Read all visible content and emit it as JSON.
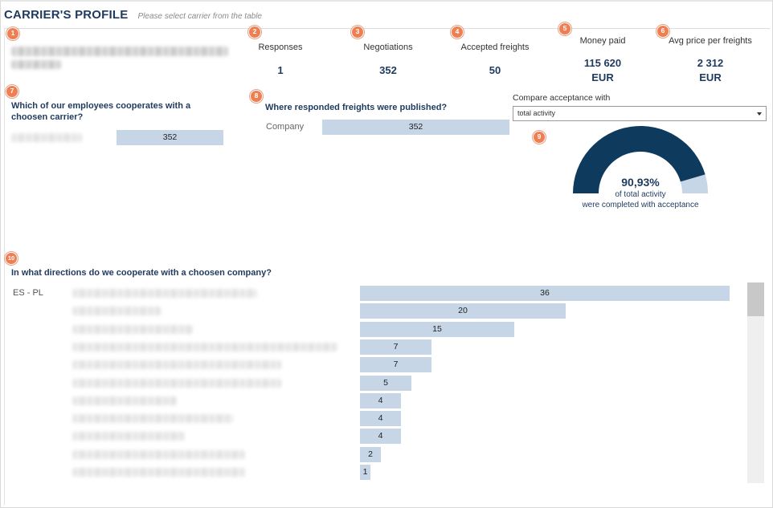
{
  "header": {
    "title": "CARRIER'S PROFILE",
    "subtitle": "Please select carrier from the table"
  },
  "badges": [
    "1",
    "2",
    "3",
    "4",
    "5",
    "6",
    "7",
    "8",
    "9",
    "10"
  ],
  "kpis": {
    "responses": {
      "label": "Responses",
      "value": "1"
    },
    "negotiations": {
      "label": "Negotiations",
      "value": "352"
    },
    "accepted": {
      "label": "Accepted freights",
      "value": "50"
    },
    "money_paid": {
      "label": "Money paid",
      "value": "115 620",
      "unit": "EUR"
    },
    "avg_price": {
      "label": "Avg price per freights",
      "value": "2 312",
      "unit": "EUR"
    }
  },
  "employees": {
    "title_line1": "Which of our employees cooperates with a",
    "title_line2": "choosen carrier?",
    "bar_value": "352"
  },
  "published": {
    "title": "Where responded freights were published?",
    "row_label": "Company",
    "bar_value": "352"
  },
  "compare": {
    "label": "Compare acceptance with",
    "selected": "total activity"
  },
  "gauge": {
    "percent_text": "90,93%",
    "line1": "of total activity",
    "line2": "were completed with acceptance",
    "fraction": 0.9093,
    "fill_color": "#0e3a5e",
    "rest_color": "#c6d6e6"
  },
  "directions": {
    "title": "In what directions do we cooperate with a choosen company?",
    "first_label": "ES - PL",
    "values": [
      36,
      20,
      15,
      7,
      7,
      5,
      4,
      4,
      4,
      2,
      1
    ]
  },
  "colors": {
    "accent": "#1f3a5f",
    "bar": "#c6d6e6",
    "badge": "#ef7f52"
  }
}
